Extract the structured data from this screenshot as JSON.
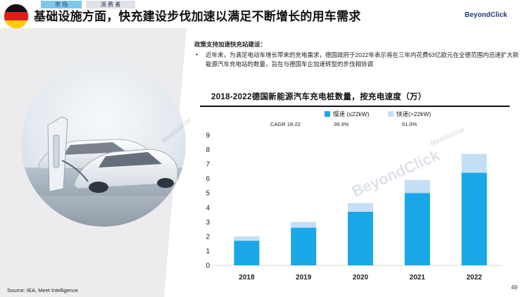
{
  "header": {
    "title": "基础设施方面，快充建设步伐加速以满足不断增长的用车需求",
    "tags": [
      "市 场",
      "消 费 者"
    ],
    "logo": "BeyondClick",
    "flag_colors": [
      "#111111",
      "#dd1c1c",
      "#ffce00"
    ]
  },
  "policy": {
    "heading": "政策支持加速快充站建设：",
    "bullet": "•",
    "text": "近年来，为满足电动车增长带来的充电需求，德国政府于2022年表示将在三年内花费63亿欧元在全德范围内迅速扩大新能源汽车充电站的数量，旨在与德国车企加速转型的步伐相协调"
  },
  "watermarks": [
    "BeyondClick",
    "Meetsocial"
  ],
  "chart_data": {
    "type": "bar",
    "stacked": true,
    "title": "2018-2022德国新能源汽车充电桩数量，按充电速度（万）",
    "categories": [
      "2018",
      "2019",
      "2020",
      "2021",
      "2022"
    ],
    "series": [
      {
        "name": "慢速 (≤22kW)",
        "values": [
          1.7,
          2.6,
          3.7,
          5.0,
          6.4
        ],
        "color": "#1aa7e8"
      },
      {
        "name": "快速(>22kW)",
        "values": [
          0.3,
          0.4,
          0.6,
          0.9,
          1.3
        ],
        "color": "#c4def5"
      }
    ],
    "cagr_label": "CAGR 18-22",
    "cagr_values": [
      "39.3%",
      "51.0%"
    ],
    "yticks": [
      0,
      1,
      2,
      3,
      4,
      5,
      6,
      7,
      8,
      9
    ],
    "ylim": [
      0,
      9
    ],
    "grid": false,
    "legend_position": "top-right"
  },
  "footer": {
    "source": "Source: IEA, Meet Intelligence",
    "page": "49"
  }
}
